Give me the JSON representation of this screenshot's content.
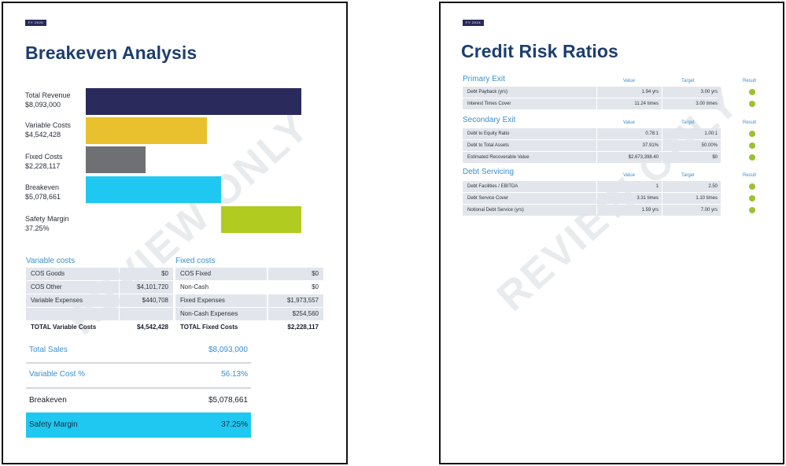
{
  "colors": {
    "navy": "#2a2a5c",
    "gold": "#e9c12e",
    "grey": "#6f7074",
    "cyan": "#1ec8f0",
    "lime": "#b2cb20",
    "title_blue": "#1d3e6e",
    "accent_blue": "#3a8fd0",
    "dot_green": "#9bc132"
  },
  "watermark": "REVIEW ONLY",
  "page1": {
    "badge": "FY 2024",
    "title": "Breakeven Analysis",
    "bars": [
      {
        "label": "Total Revenue",
        "value": "$8,093,000"
      },
      {
        "label": "Variable Costs",
        "value": "$4,542,428"
      },
      {
        "label": "Fixed Costs",
        "value": "$2,228,117"
      },
      {
        "label": "Breakeven",
        "value": "$5,078,661"
      },
      {
        "label": "Safety Margin",
        "value": "37.25%"
      }
    ],
    "variable_costs": {
      "heading": "Variable costs",
      "rows": [
        {
          "name": "COS Goods",
          "value": "$0"
        },
        {
          "name": "COS Other",
          "value": "$4,101,720"
        },
        {
          "name": "Variable Expenses",
          "value": "$440,708"
        },
        {
          "name": "",
          "value": ""
        }
      ],
      "total_label": "TOTAL Variable Costs",
      "total_value": "$4,542,428"
    },
    "fixed_costs": {
      "heading": "Fixed costs",
      "rows": [
        {
          "name": "COS Fixed",
          "value": "$0"
        },
        {
          "name": "Non-Cash",
          "value": "$0"
        },
        {
          "name": "Fixed Expenses",
          "value": "$1,973,557"
        },
        {
          "name": "Non-Cash Expenses",
          "value": "$254,560"
        }
      ],
      "total_label": "TOTAL Fixed Costs",
      "total_value": "$2,228,117"
    },
    "summary": [
      {
        "label": "Total Sales",
        "value": "$8,093,000"
      },
      {
        "label": "Variable Cost %",
        "value": "56.13%"
      },
      {
        "label": "Breakeven",
        "value": "$5,078,661"
      },
      {
        "label": "Safety Margin",
        "value": "37.25%"
      }
    ]
  },
  "page2": {
    "badge": "FY 2024",
    "title": "Credit Risk Ratios",
    "columns": {
      "value": "Value",
      "target": "Target",
      "result": "Result"
    },
    "sections": [
      {
        "heading": "Primary Exit",
        "rows": [
          {
            "name": "Debt Payback (yrs)",
            "value": "1.94 yrs",
            "target": "3.00 yrs"
          },
          {
            "name": "Interest Times Cover",
            "value": "11.24 times",
            "target": "3.00 times"
          }
        ]
      },
      {
        "heading": "Secondary Exit",
        "rows": [
          {
            "name": "Debt to Equity Ratio",
            "value": "0.78:1",
            "target": "1.00:1"
          },
          {
            "name": "Debt to Total Assets",
            "value": "37.91%",
            "target": "50.00%"
          },
          {
            "name": "Estimated Recoverable Value",
            "value": "$2,673,398.40",
            "target": "$0"
          }
        ]
      },
      {
        "heading": "Debt Servicing",
        "rows": [
          {
            "name": "Debt Facilities / EBITDA",
            "value": "1",
            "target": "2.50"
          },
          {
            "name": "Debt Service Cover",
            "value": "3.31 times",
            "target": "1.10 times"
          },
          {
            "name": "Notional Debt Service (yrs)",
            "value": "1.59 yrs",
            "target": "7.00 yrs"
          }
        ]
      }
    ]
  }
}
